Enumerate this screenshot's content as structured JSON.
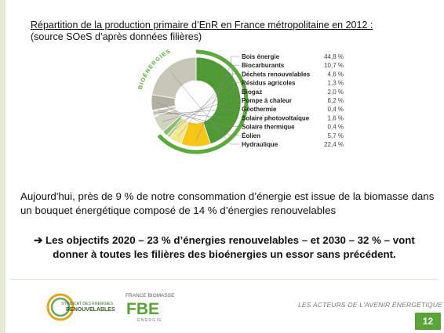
{
  "title": {
    "line1": "Répartition de la production primaire d’EnR en France métropolitaine en 2012 :",
    "line2": "(source SOeS d’après données filières)"
  },
  "chart_data": {
    "type": "pie",
    "ring_label": "BIOÉNERGIES",
    "categories": [
      "Bois énergie",
      "Biocarburants",
      "Déchets renouvelables",
      "Résidus agricoles",
      "Biogaz",
      "Pompe à chaleur",
      "Géothermie",
      "Solaire photovoltaïque",
      "Solaire thermique",
      "Éolien",
      "Hydraulique"
    ],
    "values": [
      44.8,
      10.7,
      4.6,
      1.3,
      2.0,
      6.2,
      0.4,
      1.6,
      0.4,
      5.7,
      22.4
    ],
    "value_labels": [
      "44,8 %",
      "10,7 %",
      "4,6 %",
      "1,3 %",
      "2,0 %",
      "6,2 %",
      "0,4 %",
      "1,6 %",
      "0,4 %",
      "5,7 %",
      "22,4 %"
    ],
    "colors": [
      "#4f9a34",
      "#f5c518",
      "#f3e88e",
      "#bcd39a",
      "#8dbf68",
      "#d2d2c2",
      "#e8e8dc",
      "#c5c5b4",
      "#dadacb",
      "#b0b0a0",
      "#c7c7b8"
    ],
    "bioenergy_count": 5
  },
  "text": {
    "paragraph": "Aujourd'hui, près de 9 % de notre consommation d’énergie est issue de la biomasse dans un bouquet énergétique composé de 14 % d’énergies renouvelables",
    "goals_arrow": "➔",
    "goals": "Les objectifs 2020 – 23 % d’énergies renouvelables – et 2030 – 32 % – vont donner à toutes les filières des bioénergies un essor sans précédent."
  },
  "footer": {
    "ser_line1": "SYNDICAT DES ÉNERGIES",
    "ser_line2": "RENOUVELABLES",
    "fbe_top": "FRANCE BIOMASSE",
    "fbe_logo": "FBE",
    "fbe_bottom": "ÉNERGIE",
    "tagline": "LES ACTEURS DE L'AVENIR ÉNERGÉTIQUE",
    "page_number": "12"
  }
}
